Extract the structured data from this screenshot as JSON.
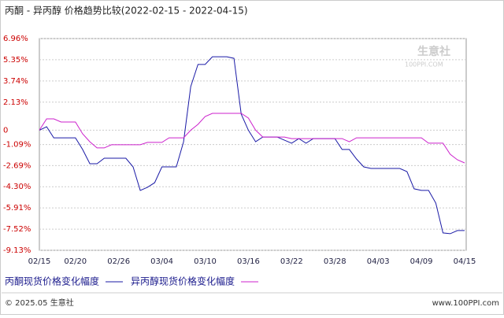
{
  "chart_data": {
    "type": "line",
    "title": "丙酮 - 异丙醇 价格趋势比较(2022-02-15 - 2022-04-15)",
    "categories": [
      "02/15",
      null,
      null,
      null,
      null,
      "02/20",
      null,
      null,
      null,
      null,
      null,
      "02/26",
      null,
      null,
      null,
      null,
      null,
      "03/04",
      null,
      null,
      null,
      null,
      null,
      "03/10",
      null,
      null,
      null,
      null,
      null,
      "03/16",
      null,
      null,
      null,
      null,
      null,
      "03/22",
      null,
      null,
      null,
      null,
      null,
      "03/28",
      null,
      null,
      null,
      null,
      null,
      "04/03",
      null,
      null,
      null,
      null,
      null,
      "04/09",
      null,
      null,
      null,
      null,
      null,
      "04/15"
    ],
    "series": [
      {
        "name": "丙酮现货价格变化幅度",
        "color": "#1a1aa6",
        "values": [
          0,
          0.26,
          -0.58,
          -0.58,
          -0.58,
          -0.58,
          -1.47,
          -2.55,
          -2.55,
          -2.13,
          -2.13,
          -2.13,
          -2.13,
          -2.79,
          -4.58,
          -4.34,
          -3.99,
          -2.79,
          -2.79,
          -2.79,
          -0.88,
          3.31,
          4.99,
          4.99,
          5.58,
          5.58,
          5.58,
          5.46,
          1.22,
          0,
          -0.88,
          -0.52,
          -0.52,
          -0.52,
          -0.76,
          -0.99,
          -0.64,
          -0.99,
          -0.64,
          -0.64,
          -0.64,
          -0.64,
          -1.47,
          -1.47,
          -2.19,
          -2.79,
          -2.91,
          -2.91,
          -2.91,
          -2.91,
          -2.91,
          -3.15,
          -4.46,
          -4.58,
          -4.58,
          -5.54,
          -7.81,
          -7.87,
          -7.63,
          -7.63
        ]
      },
      {
        "name": "异丙醇现货价格变化幅度",
        "color": "#cc22cc",
        "values": [
          0,
          0.86,
          0.86,
          0.62,
          0.62,
          0.62,
          -0.28,
          -0.88,
          -1.35,
          -1.35,
          -1.11,
          -1.11,
          -1.11,
          -1.11,
          -1.11,
          -0.93,
          -0.93,
          -0.93,
          -0.58,
          -0.58,
          -0.58,
          0,
          0.44,
          1.04,
          1.28,
          1.28,
          1.28,
          1.28,
          1.28,
          0.92,
          0,
          -0.52,
          -0.52,
          -0.52,
          -0.52,
          -0.64,
          -0.64,
          -0.64,
          -0.64,
          -0.64,
          -0.64,
          -0.64,
          -0.64,
          -0.88,
          -0.58,
          -0.58,
          -0.58,
          -0.58,
          -0.58,
          -0.58,
          -0.58,
          -0.58,
          -0.58,
          -0.58,
          -0.99,
          -0.99,
          -0.99,
          -1.83,
          -2.25,
          -2.49
        ]
      }
    ],
    "ylim": [
      -9.13,
      6.96
    ],
    "yticks": [
      {
        "value": 6.96,
        "label": "6.96%"
      },
      {
        "value": 5.35,
        "label": "5.35%"
      },
      {
        "value": 3.74,
        "label": "3.74%"
      },
      {
        "value": 2.13,
        "label": "2.13%"
      },
      0,
      {
        "value": -1.09,
        "label": "-1.09%"
      },
      {
        "value": -2.69,
        "label": "-2.69%"
      },
      {
        "value": -4.3,
        "label": "-4.30%"
      },
      {
        "value": -5.91,
        "label": "-5.91%"
      },
      {
        "value": -7.52,
        "label": "-7.52%"
      },
      {
        "value": -9.13,
        "label": "-9.13%"
      }
    ],
    "grid": true,
    "watermark": "生意社",
    "watermark_sub": "100PPI.COM",
    "footer_left": "© 2025.05 生意社",
    "footer_right": "www.100PPI.com"
  }
}
